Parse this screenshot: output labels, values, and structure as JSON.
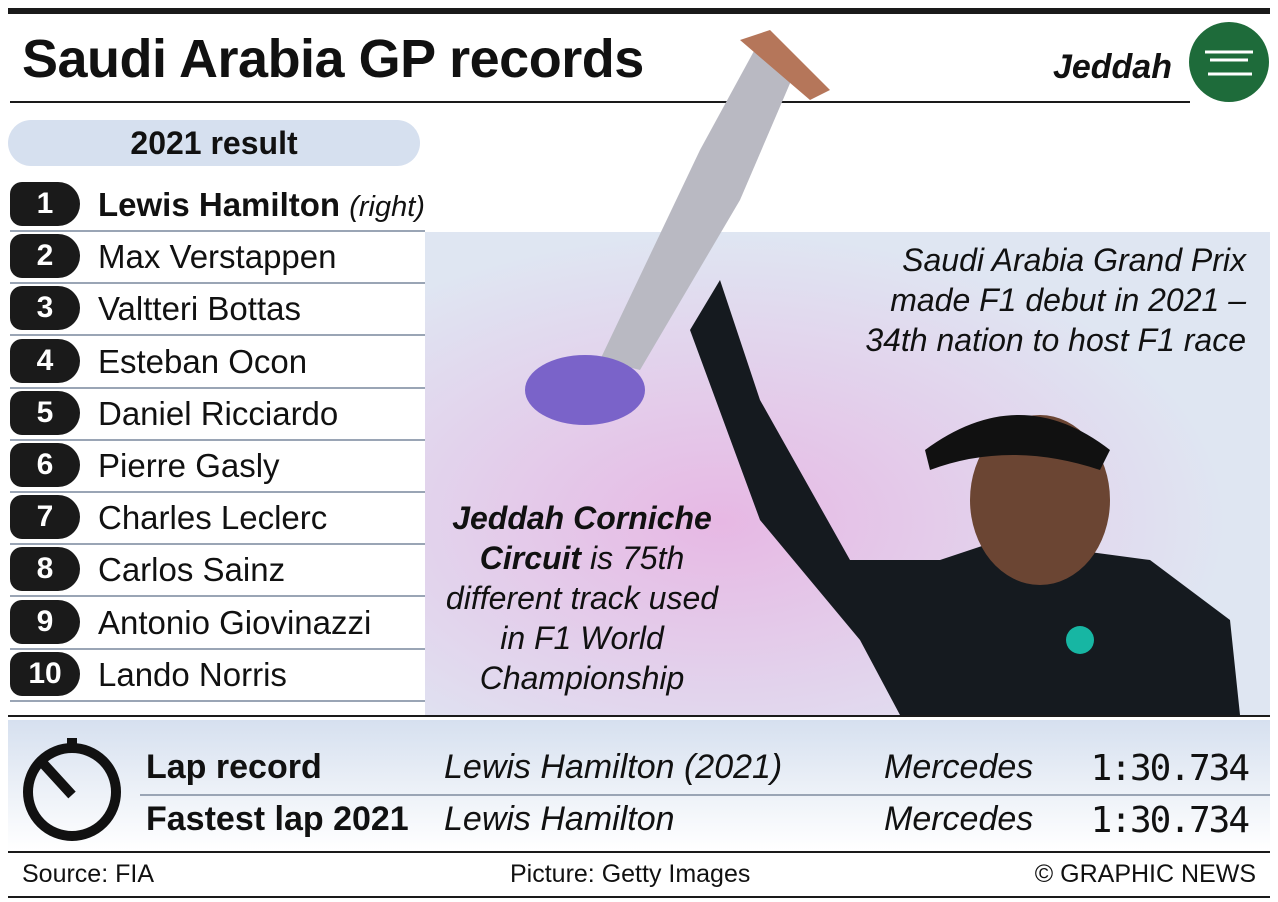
{
  "header": {
    "title": "Saudi Arabia GP records",
    "location": "Jeddah"
  },
  "result": {
    "title": "2021 result",
    "rows": [
      {
        "position": "1",
        "name": "Lewis Hamilton",
        "note": "(right)"
      },
      {
        "position": "2",
        "name": "Max Verstappen"
      },
      {
        "position": "3",
        "name": "Valtteri Bottas"
      },
      {
        "position": "4",
        "name": "Esteban Ocon"
      },
      {
        "position": "5",
        "name": "Daniel Ricciardo"
      },
      {
        "position": "6",
        "name": "Pierre Gasly"
      },
      {
        "position": "7",
        "name": "Charles Leclerc"
      },
      {
        "position": "8",
        "name": "Carlos Sainz"
      },
      {
        "position": "9",
        "name": "Antonio Giovinazzi"
      },
      {
        "position": "10",
        "name": "Lando Norris"
      }
    ]
  },
  "notes": {
    "debut": "Saudi Arabia Grand Prix made F1 debut in 2021 – 34th nation to host F1 race",
    "circuit_bold": "Jeddah Corniche Circuit",
    "circuit_rest": "is 75th different track used in F1 World Championship"
  },
  "records": [
    {
      "label": "Lap record",
      "driver": "Lewis Hamilton (2021)",
      "team": "Mercedes",
      "time": "1:30.734"
    },
    {
      "label": "Fastest lap 2021",
      "driver": "Lewis Hamilton",
      "team": "Mercedes",
      "time": "1:30.734"
    }
  ],
  "footer": {
    "source": "Source: FIA",
    "picture": "Picture: Getty Images",
    "credit": "© GRAPHIC NEWS"
  }
}
